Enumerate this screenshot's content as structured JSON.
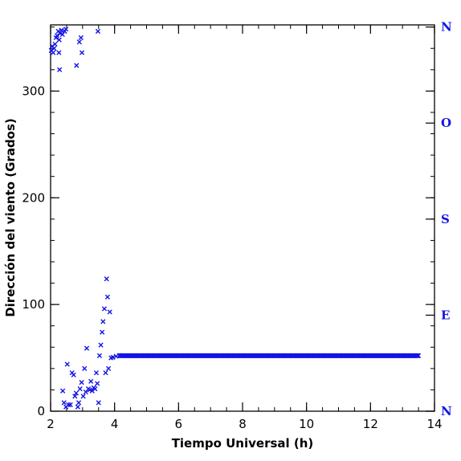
{
  "chart_data": {
    "type": "scatter",
    "title": "",
    "xlabel": "Tiempo Universal (h)",
    "ylabel": "Dirección del viento (Grados)",
    "xlim": [
      2,
      14
    ],
    "ylim": [
      0,
      362
    ],
    "grid": false,
    "x_ticks": [
      2,
      4,
      6,
      8,
      10,
      12,
      14
    ],
    "y_ticks": [
      0,
      100,
      200,
      300
    ],
    "x_minor_step": 0.5,
    "y_minor_step": 20,
    "marker": "x",
    "color": "#1414e6",
    "right_axis": {
      "labels": [
        {
          "text": "N",
          "value": 360
        },
        {
          "text": "O",
          "value": 270
        },
        {
          "text": "S",
          "value": 180
        },
        {
          "text": "E",
          "value": 90
        },
        {
          "text": "N",
          "value": 0
        }
      ],
      "color": "#1414e6"
    },
    "scattered_points": [
      [
        2.02,
        338
      ],
      [
        2.05,
        342
      ],
      [
        2.08,
        336
      ],
      [
        2.11,
        340
      ],
      [
        2.14,
        344
      ],
      [
        2.17,
        350
      ],
      [
        2.2,
        352
      ],
      [
        2.24,
        356
      ],
      [
        2.27,
        348
      ],
      [
        2.3,
        354
      ],
      [
        2.34,
        357
      ],
      [
        2.37,
        353
      ],
      [
        2.44,
        356
      ],
      [
        2.48,
        358
      ],
      [
        2.26,
        336
      ],
      [
        2.28,
        320
      ],
      [
        2.81,
        324
      ],
      [
        2.9,
        346
      ],
      [
        2.95,
        350
      ],
      [
        2.98,
        336
      ],
      [
        3.48,
        356
      ],
      [
        2.38,
        19
      ],
      [
        2.42,
        8
      ],
      [
        2.48,
        4
      ],
      [
        2.52,
        44
      ],
      [
        2.56,
        6
      ],
      [
        2.62,
        6
      ],
      [
        2.67,
        36
      ],
      [
        2.72,
        34
      ],
      [
        2.76,
        14
      ],
      [
        2.8,
        17
      ],
      [
        2.85,
        4
      ],
      [
        2.88,
        8
      ],
      [
        2.92,
        21
      ],
      [
        2.97,
        27
      ],
      [
        3.02,
        14
      ],
      [
        3.06,
        40
      ],
      [
        3.1,
        18
      ],
      [
        3.13,
        59
      ],
      [
        3.18,
        21
      ],
      [
        3.22,
        20
      ],
      [
        3.26,
        28
      ],
      [
        3.3,
        19
      ],
      [
        3.35,
        22
      ],
      [
        3.39,
        21
      ],
      [
        3.43,
        36
      ],
      [
        3.46,
        26
      ],
      [
        3.5,
        8
      ],
      [
        3.53,
        52
      ],
      [
        3.57,
        62
      ],
      [
        3.61,
        74
      ],
      [
        3.64,
        84
      ],
      [
        3.68,
        96
      ],
      [
        3.72,
        36
      ],
      [
        3.75,
        124
      ],
      [
        3.78,
        107
      ],
      [
        3.81,
        40
      ],
      [
        3.85,
        93
      ],
      [
        3.89,
        50
      ]
    ],
    "steady_series": {
      "x_start": 3.95,
      "x_end": 13.5,
      "x_step": 0.022,
      "y_value": 52,
      "initial_ramp": [
        [
          3.95,
          50.5
        ],
        [
          4.05,
          51.5
        ],
        [
          4.15,
          52.2
        ]
      ]
    }
  }
}
